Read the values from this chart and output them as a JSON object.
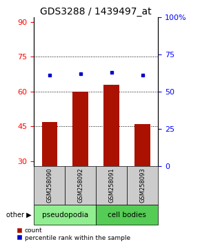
{
  "title": "GDS3288 / 1439497_at",
  "samples": [
    "GSM258090",
    "GSM258092",
    "GSM258091",
    "GSM258093"
  ],
  "bar_values": [
    47,
    60,
    63,
    46
  ],
  "percentile_values": [
    61,
    62,
    63,
    61
  ],
  "ylim_left": [
    28,
    92
  ],
  "ylim_right": [
    0,
    100
  ],
  "yticks_left": [
    30,
    45,
    60,
    75,
    90
  ],
  "yticks_right": [
    0,
    25,
    50,
    75,
    100
  ],
  "ytick_labels_right": [
    "0",
    "25",
    "50",
    "75",
    "100%"
  ],
  "hlines": [
    45,
    60,
    75
  ],
  "bar_color": "#AA1100",
  "percentile_color": "#0000CC",
  "bar_width": 0.5,
  "group_defs": [
    {
      "start": 0,
      "end": 2,
      "color": "#90EE90",
      "label": "pseudopodia"
    },
    {
      "start": 2,
      "end": 4,
      "color": "#55CC55",
      "label": "cell bodies"
    }
  ],
  "legend_count_label": "count",
  "legend_percentile_label": "percentile rank within the sample",
  "title_fontsize": 10,
  "tick_fontsize": 8,
  "sample_fontsize": 6,
  "group_fontsize": 7.5
}
